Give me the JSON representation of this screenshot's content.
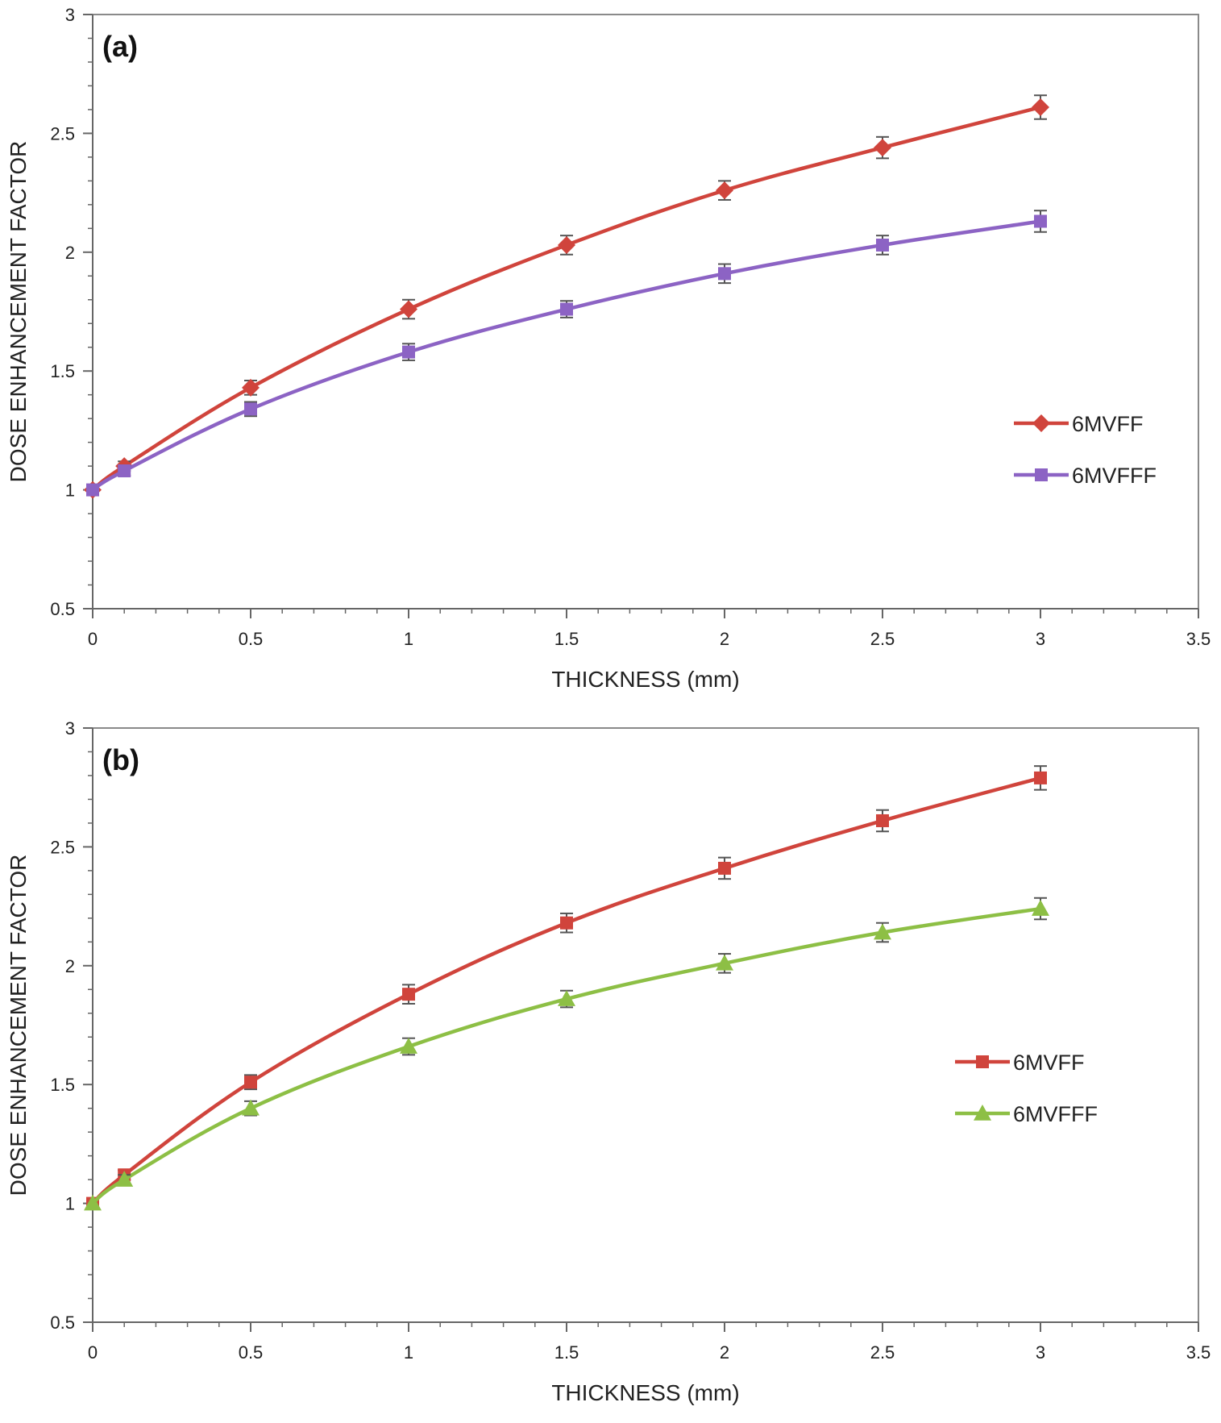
{
  "chart_data": [
    {
      "type": "line",
      "panel_label": "(a)",
      "xlabel": "THICKNESS (mm)",
      "ylabel": "DOSE ENHANCEMENT FACTOR",
      "xlim": [
        0,
        3.5
      ],
      "ylim": [
        0.5,
        3
      ],
      "xticks": [
        0,
        0.5,
        1,
        1.5,
        2,
        2.5,
        3,
        3.5
      ],
      "xtick_labels": [
        "0",
        "0.5",
        "1",
        "1.5",
        "2",
        "2.5",
        "3",
        "3.5"
      ],
      "yticks": [
        0.5,
        1,
        1.5,
        2,
        2.5,
        3
      ],
      "ytick_labels": [
        "0.5",
        "1",
        "1.5",
        "2",
        "2.5",
        "3"
      ],
      "grid": false,
      "legend_position": "right",
      "x": [
        0,
        0.1,
        0.5,
        1,
        1.5,
        2,
        2.5,
        3
      ],
      "series": [
        {
          "name": "6MVFF",
          "color": "#d0443c",
          "marker": "diamond",
          "values": [
            1.0,
            1.1,
            1.43,
            1.76,
            2.03,
            2.26,
            2.44,
            2.61
          ],
          "errors": [
            0.01,
            0.02,
            0.03,
            0.04,
            0.04,
            0.04,
            0.045,
            0.05
          ]
        },
        {
          "name": "6MVFFF",
          "color": "#8c63c4",
          "marker": "square",
          "values": [
            1.0,
            1.08,
            1.34,
            1.58,
            1.76,
            1.91,
            2.03,
            2.13
          ],
          "errors": [
            0.01,
            0.02,
            0.03,
            0.035,
            0.035,
            0.04,
            0.04,
            0.045
          ]
        }
      ]
    },
    {
      "type": "line",
      "panel_label": "(b)",
      "xlabel": "THICKNESS (mm)",
      "ylabel": "DOSE ENHANCEMENT FACTOR",
      "xlim": [
        0,
        3.5
      ],
      "ylim": [
        0.5,
        3
      ],
      "xticks": [
        0,
        0.5,
        1,
        1.5,
        2,
        2.5,
        3,
        3.5
      ],
      "xtick_labels": [
        "0",
        "0.5",
        "1",
        "1.5",
        "2",
        "2.5",
        "3",
        "3.5"
      ],
      "yticks": [
        0.5,
        1,
        1.5,
        2,
        2.5,
        3
      ],
      "ytick_labels": [
        "0.5",
        "1",
        "1.5",
        "2",
        "2.5",
        "3"
      ],
      "grid": false,
      "legend_position": "right",
      "x": [
        0,
        0.1,
        0.5,
        1,
        1.5,
        2,
        2.5,
        3
      ],
      "series": [
        {
          "name": "6MVFF",
          "color": "#d0443c",
          "marker": "square",
          "values": [
            1.0,
            1.12,
            1.51,
            1.88,
            2.18,
            2.41,
            2.61,
            2.79
          ],
          "errors": [
            0.01,
            0.02,
            0.03,
            0.04,
            0.04,
            0.045,
            0.045,
            0.05
          ]
        },
        {
          "name": "6MVFFF",
          "color": "#8dbf45",
          "marker": "triangle",
          "values": [
            1.0,
            1.1,
            1.4,
            1.66,
            1.86,
            2.01,
            2.14,
            2.24
          ],
          "errors": [
            0.01,
            0.02,
            0.03,
            0.035,
            0.035,
            0.04,
            0.04,
            0.045
          ]
        }
      ]
    }
  ]
}
